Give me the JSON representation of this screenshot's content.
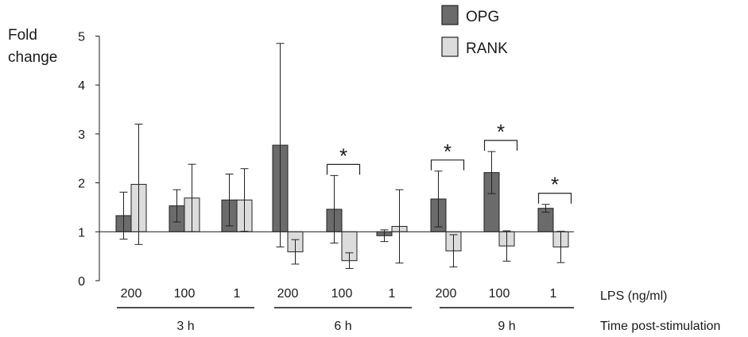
{
  "chart_data": {
    "type": "bar",
    "ylabel_lines": [
      "Fold",
      "change"
    ],
    "ylim": [
      0,
      5
    ],
    "yticks": [
      "0",
      "1",
      "2",
      "3",
      "4",
      "5"
    ],
    "baseline": 1,
    "legend": {
      "placement": "top-right",
      "entries": [
        {
          "name": "OPG",
          "color": "#6b6b6b"
        },
        {
          "name": "RANK",
          "color": "#dcdcdc"
        }
      ]
    },
    "x_axis_label": "LPS (ng/ml)",
    "group_axis_label": "Time post-stimulation",
    "categories": [
      "200",
      "100",
      "1",
      "200",
      "100",
      "1",
      "200",
      "100",
      "1"
    ],
    "groups": [
      {
        "label": "3 h",
        "from": 0,
        "to": 2
      },
      {
        "label": "6 h",
        "from": 3,
        "to": 5
      },
      {
        "label": "9 h",
        "from": 6,
        "to": 8
      }
    ],
    "series": [
      {
        "name": "OPG",
        "color": "#6b6b6b",
        "values": [
          1.33,
          1.53,
          1.65,
          2.77,
          1.46,
          0.92,
          1.67,
          2.21,
          1.48
        ],
        "error": [
          0.48,
          0.33,
          0.53,
          2.08,
          0.69,
          0.12,
          0.57,
          0.43,
          0.08
        ]
      },
      {
        "name": "RANK",
        "color": "#dcdcdc",
        "values": [
          1.97,
          1.69,
          1.65,
          0.59,
          0.41,
          1.11,
          0.61,
          0.71,
          0.69
        ],
        "error": [
          1.23,
          0.69,
          0.64,
          0.25,
          0.16,
          0.75,
          0.33,
          0.31,
          0.32
        ]
      }
    ],
    "significance": [
      {
        "category": 4,
        "label": "*"
      },
      {
        "category": 6,
        "label": "*"
      },
      {
        "category": 7,
        "label": "*"
      },
      {
        "category": 8,
        "label": "*"
      }
    ]
  }
}
